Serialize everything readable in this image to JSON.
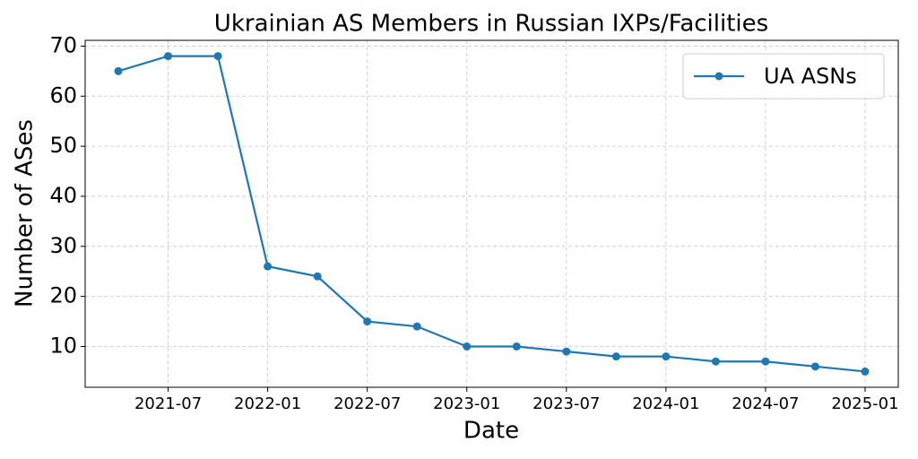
{
  "chart_data": {
    "type": "line",
    "title": "Ukrainian AS Members in Russian IXPs/Facilities",
    "x_label": "Date",
    "y_label": "Number of ASes",
    "x": [
      "2021-04",
      "2021-07",
      "2021-10",
      "2022-01",
      "2022-04",
      "2022-07",
      "2022-10",
      "2023-01",
      "2023-04",
      "2023-07",
      "2023-10",
      "2024-01",
      "2024-04",
      "2024-07",
      "2024-10",
      "2025-01"
    ],
    "series": [
      {
        "name": "UA ASNs",
        "color": "#1f77b4",
        "values": [
          65,
          68,
          68,
          26,
          24,
          15,
          14,
          10,
          10,
          9,
          8,
          8,
          7,
          7,
          6,
          5
        ]
      }
    ],
    "xlim": [
      "2021-02",
      "2025-03"
    ],
    "xticks": [
      "2021-07",
      "2022-01",
      "2022-07",
      "2023-01",
      "2023-07",
      "2024-01",
      "2024-07",
      "2025-01"
    ],
    "ylim": [
      1.85,
      71.15
    ],
    "yticks": [
      10,
      20,
      30,
      40,
      50,
      60,
      70
    ],
    "grid": true,
    "legend": "upper right"
  }
}
